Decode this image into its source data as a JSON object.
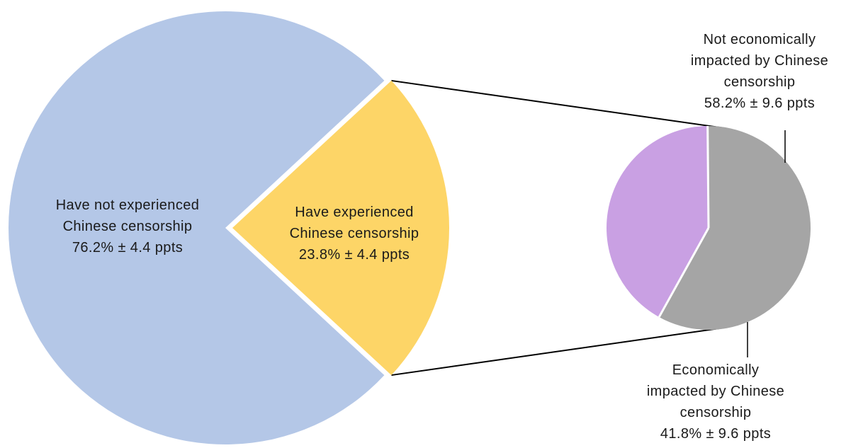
{
  "chart_data": [
    {
      "type": "pie",
      "slices": [
        {
          "key": "not-experienced",
          "label_lines": [
            "Have not experienced",
            "Chinese censorship",
            "76.2% ± 4.4 ppts"
          ],
          "value": 76.2,
          "margin": 4.4,
          "color": "#b4c7e7"
        },
        {
          "key": "experienced",
          "label_lines": [
            "Have experienced",
            "Chinese censorship",
            "23.8% ± 4.4 ppts"
          ],
          "value": 23.8,
          "margin": 4.4,
          "color": "#fdd567",
          "exploded": true
        }
      ]
    },
    {
      "type": "pie",
      "breakdown_of": "Have experienced Chinese censorship",
      "slices": [
        {
          "key": "not-economic",
          "label_lines": [
            "Not economically",
            "impacted by Chinese",
            "censorship",
            "58.2% ±  9.6 ppts"
          ],
          "value": 58.2,
          "margin": 9.6,
          "color": "#a5a5a5"
        },
        {
          "key": "economic",
          "label_lines": [
            "Economically",
            "impacted by Chinese",
            "censorship",
            "41.8% ± 9.6 ppts"
          ],
          "value": 41.8,
          "margin": 9.6,
          "color": "#c9a0e3"
        }
      ]
    }
  ]
}
